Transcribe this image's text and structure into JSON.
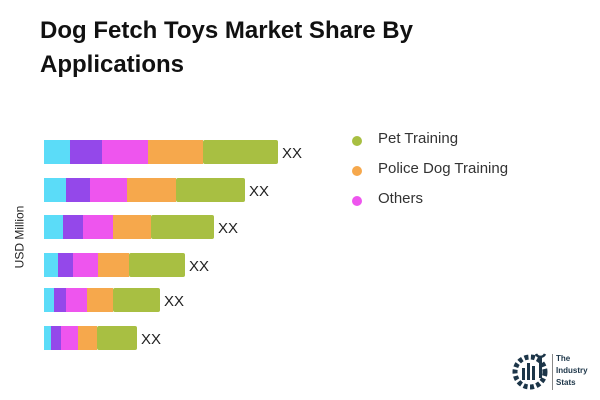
{
  "chart_data": {
    "type": "bar",
    "orientation": "horizontal",
    "stacked": true,
    "title": "Dog Fetch Toys Market Share By Applications",
    "ylabel": "USD Million",
    "xlabel": "",
    "categories": [
      "",
      "",
      "",
      "",
      "",
      ""
    ],
    "data_labels": [
      "XX",
      "XX",
      "XX",
      "XX",
      "XX",
      "XX"
    ],
    "grid": false,
    "legend_position": "right",
    "series": [
      {
        "color": "#5bdcf8",
        "values": [
          26,
          22,
          19,
          14,
          10,
          7
        ]
      },
      {
        "color": "#9448ea",
        "values": [
          32,
          24,
          20,
          15,
          12,
          10
        ]
      },
      {
        "name": "Others",
        "color": "#ee55ee",
        "values": [
          46,
          37,
          30,
          25,
          21,
          17
        ]
      },
      {
        "name": "Police Dog Training",
        "color": "#f6a84c",
        "values": [
          55,
          49,
          38,
          31,
          26,
          19
        ]
      },
      {
        "name": "Pet Training",
        "color": "#a8bf42",
        "values": [
          75,
          69,
          63,
          56,
          47,
          40
        ]
      }
    ],
    "legend": [
      {
        "label": "Pet Training",
        "color": "#a8bf42"
      },
      {
        "label": "Police Dog Training",
        "color": "#f6a84c"
      },
      {
        "label": "Others",
        "color": "#ee55ee"
      }
    ]
  },
  "logo": {
    "text": "The Industry Stats"
  }
}
